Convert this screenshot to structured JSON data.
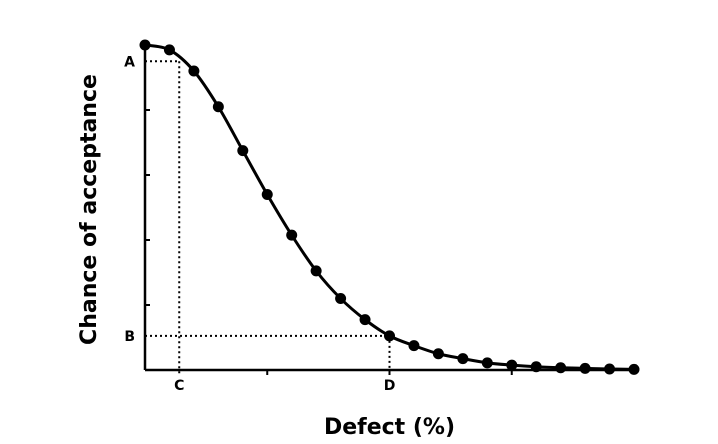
{
  "chart_data": {
    "type": "line",
    "title": "",
    "xlabel": "Defect (%)",
    "ylabel": "Chance of acceptance",
    "xlim": [
      0,
      20
    ],
    "ylim": [
      0,
      1
    ],
    "x": [
      0,
      1,
      2,
      3,
      4,
      5,
      6,
      7,
      8,
      9,
      10,
      11,
      12,
      13,
      14,
      15,
      16,
      17,
      18,
      19,
      20
    ],
    "series": [
      {
        "values": [
          1.0,
          0.985,
          0.92,
          0.81,
          0.675,
          0.54,
          0.415,
          0.305,
          0.22,
          0.155,
          0.105,
          0.075,
          0.05,
          0.035,
          0.022,
          0.015,
          0.01,
          0.007,
          0.005,
          0.003,
          0.002
        ]
      }
    ],
    "x_tick_values": [
      5,
      10,
      15
    ],
    "y_tick_values": [
      0.2,
      0.4,
      0.6,
      0.8
    ],
    "grid": false,
    "legend": "none",
    "line_color": "#000000",
    "reference_lines": [
      {
        "label_y": "A",
        "y": 0.95,
        "label_x": "C",
        "x": 1.4
      },
      {
        "label_y": "B",
        "y": 0.105,
        "label_x": "D",
        "x": 10
      }
    ]
  }
}
